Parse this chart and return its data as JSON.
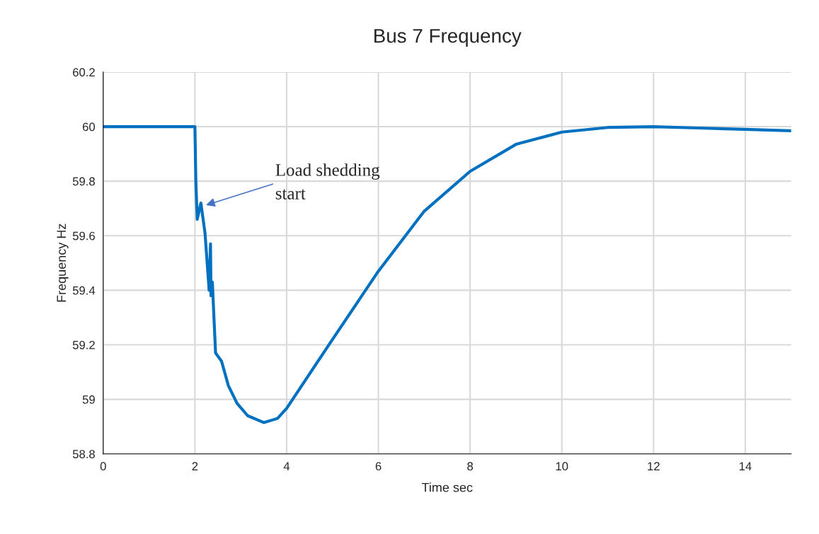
{
  "chart_data": {
    "type": "line",
    "title": "Bus 7 Frequency",
    "xlabel": "Time sec",
    "ylabel": "Frequency Hz",
    "x": [
      0,
      2,
      2.02,
      2.05,
      2.13,
      2.22,
      2.31,
      2.34,
      2.35,
      2.38,
      2.45,
      2.58,
      2.73,
      2.92,
      3.15,
      3.5,
      3.8,
      4,
      5,
      6,
      7,
      8,
      9,
      10,
      11,
      12,
      13,
      14,
      15
    ],
    "series": [
      {
        "color": "#0070c0",
        "values": [
          60,
          60,
          59.8,
          59.66,
          59.72,
          59.61,
          59.4,
          59.57,
          59.38,
          59.43,
          59.17,
          59.14,
          59.05,
          58.985,
          58.94,
          58.915,
          58.93,
          58.967,
          59.22,
          59.47,
          59.69,
          59.836,
          59.935,
          59.98,
          59.997,
          60,
          59.995,
          59.99,
          59.985
        ]
      }
    ],
    "xlim": [
      0,
      15
    ],
    "xticks": [
      0,
      2,
      4,
      6,
      8,
      10,
      12,
      14
    ],
    "ylim": [
      58.8,
      60.2
    ],
    "yticks": [
      58.8,
      59,
      59.2,
      59.4,
      59.6,
      59.8,
      60,
      60.2
    ],
    "grid": true,
    "legend": false,
    "line_style": "solid",
    "marker": "none",
    "annotations": [
      {
        "text": "Load shedding\nstart",
        "x": 2.2,
        "y": 59.71
      }
    ]
  }
}
